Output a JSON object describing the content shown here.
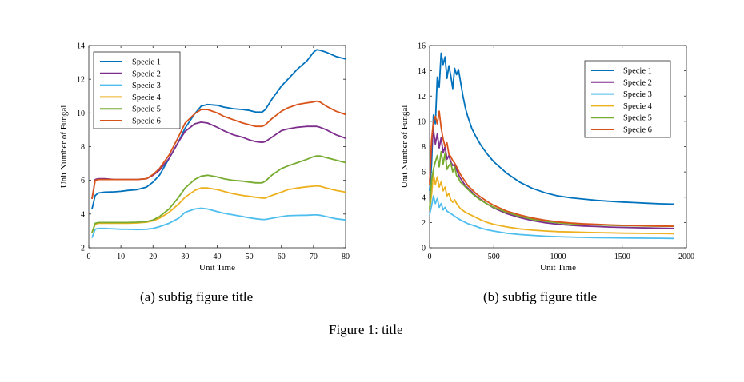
{
  "figure_caption": "Figure 1: title",
  "subcaptions": [
    "(a) subfig figure title",
    "(b) subfig figure title"
  ],
  "chart_data": [
    {
      "type": "line",
      "title": "",
      "xlabel": "Unit Time",
      "ylabel": "Unit Number of Fungal",
      "xlim": [
        0,
        80
      ],
      "ylim": [
        2,
        14
      ],
      "xticks": [
        0,
        10,
        20,
        30,
        40,
        50,
        60,
        70,
        80
      ],
      "yticks": [
        2,
        4,
        6,
        8,
        10,
        12,
        14
      ],
      "grid": false,
      "legend_position": "top-left",
      "x": [
        1,
        2,
        3,
        5,
        8,
        10,
        12,
        15,
        18,
        20,
        22,
        25,
        28,
        30,
        33,
        35,
        37,
        40,
        42,
        45,
        48,
        50,
        52,
        54,
        55,
        57,
        60,
        62,
        65,
        68,
        70,
        71,
        72,
        74,
        77,
        80
      ],
      "series": [
        {
          "name": "Specie 1",
          "color": "#0072BD",
          "values": [
            4.3,
            5.1,
            5.25,
            5.3,
            5.32,
            5.35,
            5.4,
            5.45,
            5.6,
            5.9,
            6.3,
            7.3,
            8.3,
            9.1,
            9.95,
            10.4,
            10.5,
            10.45,
            10.35,
            10.25,
            10.2,
            10.15,
            10.05,
            10.05,
            10.2,
            10.8,
            11.6,
            12.0,
            12.6,
            13.1,
            13.6,
            13.75,
            13.72,
            13.6,
            13.35,
            13.2
          ]
        },
        {
          "name": "Specie 2",
          "color": "#7E2F8E",
          "values": [
            4.9,
            6.05,
            6.1,
            6.1,
            6.05,
            6.05,
            6.05,
            6.05,
            6.1,
            6.3,
            6.6,
            7.3,
            8.3,
            8.9,
            9.35,
            9.45,
            9.4,
            9.15,
            8.95,
            8.7,
            8.55,
            8.4,
            8.3,
            8.25,
            8.3,
            8.55,
            8.95,
            9.05,
            9.15,
            9.2,
            9.2,
            9.2,
            9.15,
            9.0,
            8.7,
            8.5
          ]
        },
        {
          "name": "Specie 3",
          "color": "#4DBEEE",
          "values": [
            2.6,
            3.1,
            3.15,
            3.15,
            3.12,
            3.1,
            3.1,
            3.08,
            3.1,
            3.15,
            3.25,
            3.45,
            3.75,
            4.1,
            4.3,
            4.35,
            4.3,
            4.15,
            4.05,
            3.95,
            3.85,
            3.78,
            3.72,
            3.68,
            3.68,
            3.75,
            3.85,
            3.9,
            3.92,
            3.93,
            3.95,
            3.95,
            3.93,
            3.85,
            3.72,
            3.65
          ]
        },
        {
          "name": "Specie 4",
          "color": "#EDB120",
          "values": [
            2.9,
            3.4,
            3.45,
            3.45,
            3.45,
            3.45,
            3.45,
            3.47,
            3.52,
            3.6,
            3.75,
            4.1,
            4.6,
            5.0,
            5.4,
            5.55,
            5.55,
            5.45,
            5.35,
            5.2,
            5.1,
            5.05,
            5.0,
            4.95,
            4.95,
            5.1,
            5.3,
            5.45,
            5.55,
            5.62,
            5.65,
            5.67,
            5.65,
            5.55,
            5.4,
            5.3
          ]
        },
        {
          "name": "Specie 5",
          "color": "#77AC30",
          "values": [
            2.9,
            3.45,
            3.5,
            3.5,
            3.5,
            3.5,
            3.5,
            3.52,
            3.55,
            3.65,
            3.85,
            4.3,
            5.0,
            5.55,
            6.05,
            6.25,
            6.3,
            6.2,
            6.1,
            6.0,
            5.95,
            5.9,
            5.85,
            5.85,
            5.95,
            6.3,
            6.7,
            6.85,
            7.05,
            7.25,
            7.4,
            7.45,
            7.45,
            7.35,
            7.2,
            7.05
          ]
        },
        {
          "name": "Specie 6",
          "color": "#D95319",
          "values": [
            4.9,
            6.0,
            6.05,
            6.05,
            6.05,
            6.05,
            6.05,
            6.05,
            6.1,
            6.35,
            6.7,
            7.5,
            8.6,
            9.4,
            9.95,
            10.2,
            10.2,
            10.0,
            9.8,
            9.6,
            9.4,
            9.3,
            9.2,
            9.2,
            9.3,
            9.65,
            10.1,
            10.3,
            10.5,
            10.6,
            10.65,
            10.7,
            10.65,
            10.4,
            10.1,
            9.9
          ]
        }
      ]
    },
    {
      "type": "line",
      "title": "",
      "xlabel": "Unit Time",
      "ylabel": "Unit Number of Fungal",
      "xlim": [
        0,
        2000
      ],
      "ylim": [
        0,
        16
      ],
      "xticks": [
        0,
        500,
        1000,
        1500,
        2000
      ],
      "yticks": [
        0,
        2,
        4,
        6,
        8,
        10,
        12,
        14,
        16
      ],
      "grid": false,
      "legend_position": "top-right",
      "x": [
        0,
        15,
        30,
        45,
        60,
        75,
        90,
        105,
        120,
        135,
        150,
        165,
        180,
        195,
        210,
        225,
        240,
        260,
        280,
        300,
        330,
        360,
        400,
        450,
        500,
        600,
        700,
        800,
        900,
        1000,
        1100,
        1200,
        1300,
        1400,
        1500,
        1600,
        1700,
        1800,
        1900
      ],
      "series": [
        {
          "name": "Specie 1",
          "color": "#0072BD",
          "values": [
            4.5,
            6.5,
            10.5,
            9.8,
            13.5,
            12.7,
            15.4,
            14.5,
            15.1,
            13.4,
            14.4,
            13.6,
            12.6,
            14.2,
            13.7,
            14.1,
            13.2,
            12.0,
            11.0,
            10.3,
            9.4,
            8.8,
            8.1,
            7.4,
            6.8,
            5.9,
            5.2,
            4.7,
            4.35,
            4.1,
            3.95,
            3.85,
            3.75,
            3.68,
            3.62,
            3.57,
            3.52,
            3.48,
            3.45
          ]
        },
        {
          "name": "Specie 2",
          "color": "#7E2F8E",
          "values": [
            5.2,
            7.8,
            9.3,
            8.2,
            9.0,
            7.9,
            8.7,
            7.5,
            8.0,
            7.0,
            7.3,
            6.8,
            6.5,
            6.6,
            6.2,
            5.8,
            5.5,
            5.2,
            4.9,
            4.7,
            4.4,
            4.1,
            3.8,
            3.45,
            3.15,
            2.7,
            2.4,
            2.15,
            1.98,
            1.86,
            1.78,
            1.72,
            1.68,
            1.64,
            1.61,
            1.59,
            1.57,
            1.55,
            1.53
          ]
        },
        {
          "name": "Specie 3",
          "color": "#4DBEEE",
          "values": [
            2.6,
            3.3,
            4.1,
            3.5,
            3.9,
            3.2,
            3.5,
            3.0,
            3.2,
            2.9,
            2.8,
            2.7,
            2.6,
            2.5,
            2.4,
            2.3,
            2.2,
            2.1,
            2.0,
            1.9,
            1.8,
            1.7,
            1.55,
            1.42,
            1.32,
            1.15,
            1.05,
            0.98,
            0.92,
            0.88,
            0.85,
            0.82,
            0.8,
            0.79,
            0.78,
            0.77,
            0.76,
            0.75,
            0.74
          ]
        },
        {
          "name": "Specie 4",
          "color": "#EDB120",
          "values": [
            3.0,
            4.2,
            5.8,
            5.0,
            5.6,
            4.8,
            5.2,
            4.5,
            4.8,
            4.1,
            4.3,
            3.8,
            3.6,
            3.8,
            3.5,
            3.3,
            3.1,
            2.95,
            2.8,
            2.7,
            2.55,
            2.4,
            2.2,
            2.0,
            1.85,
            1.65,
            1.5,
            1.4,
            1.33,
            1.28,
            1.25,
            1.22,
            1.2,
            1.18,
            1.16,
            1.15,
            1.14,
            1.13,
            1.12
          ]
        },
        {
          "name": "Specie 5",
          "color": "#77AC30",
          "values": [
            3.1,
            5.3,
            6.2,
            6.8,
            7.3,
            6.4,
            7.6,
            6.6,
            7.5,
            6.2,
            6.5,
            6.7,
            6.0,
            6.4,
            5.7,
            5.5,
            5.2,
            5.0,
            4.8,
            4.6,
            4.3,
            4.05,
            3.75,
            3.45,
            3.2,
            2.8,
            2.5,
            2.25,
            2.1,
            1.98,
            1.9,
            1.85,
            1.81,
            1.78,
            1.76,
            1.74,
            1.72,
            1.71,
            1.7
          ]
        },
        {
          "name": "Specie 6",
          "color": "#D95319",
          "values": [
            5.0,
            8.5,
            10.0,
            10.4,
            9.8,
            10.8,
            9.5,
            8.6,
            8.0,
            8.3,
            7.4,
            7.2,
            6.9,
            6.7,
            6.4,
            6.1,
            5.8,
            5.5,
            5.2,
            4.9,
            4.6,
            4.3,
            4.0,
            3.65,
            3.35,
            2.9,
            2.6,
            2.35,
            2.18,
            2.05,
            1.96,
            1.9,
            1.85,
            1.81,
            1.78,
            1.76,
            1.74,
            1.72,
            1.71
          ]
        }
      ]
    }
  ]
}
